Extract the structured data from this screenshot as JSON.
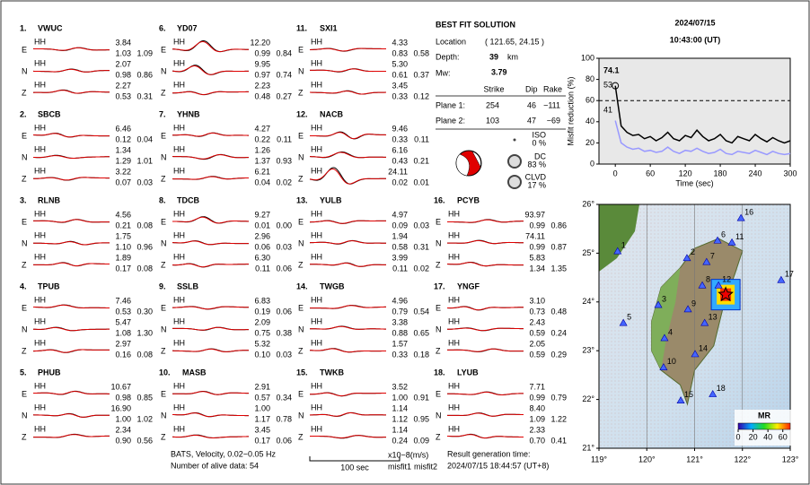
{
  "header": {
    "date": "2024/07/15",
    "time": "10:43:00  (UT)"
  },
  "stations": [
    {
      "number": "1.",
      "name": "VWUC",
      "channel": "HH",
      "components": [
        {
          "label": "E",
          "amplitude": "3.84",
          "misfit1": "1.03",
          "misfit2": "1.09"
        },
        {
          "label": "N",
          "amplitude": "2.07",
          "misfit1": "0.98",
          "misfit2": "0.86"
        },
        {
          "label": "Z",
          "amplitude": "2.27",
          "misfit1": "0.53",
          "misfit2": "0.31"
        }
      ]
    },
    {
      "number": "2.",
      "name": "SBCB",
      "channel": "HH",
      "components": [
        {
          "label": "E",
          "amplitude": "6.46",
          "misfit1": "0.12",
          "misfit2": "0.04"
        },
        {
          "label": "N",
          "amplitude": "1.34",
          "misfit1": "1.29",
          "misfit2": "1.01"
        },
        {
          "label": "Z",
          "amplitude": "3.22",
          "misfit1": "0.07",
          "misfit2": "0.03"
        }
      ]
    },
    {
      "number": "3.",
      "name": "RLNB",
      "channel": "HH",
      "components": [
        {
          "label": "E",
          "amplitude": "4.56",
          "misfit1": "0.21",
          "misfit2": "0.08"
        },
        {
          "label": "N",
          "amplitude": "1.75",
          "misfit1": "1.10",
          "misfit2": "0.96"
        },
        {
          "label": "Z",
          "amplitude": "1.89",
          "misfit1": "0.17",
          "misfit2": "0.08"
        }
      ]
    },
    {
      "number": "4.",
      "name": "TPUB",
      "channel": "HH",
      "components": [
        {
          "label": "E",
          "amplitude": "7.46",
          "misfit1": "0.53",
          "misfit2": "0.30"
        },
        {
          "label": "N",
          "amplitude": "5.47",
          "misfit1": "1.08",
          "misfit2": "1.30"
        },
        {
          "label": "Z",
          "amplitude": "2.97",
          "misfit1": "0.16",
          "misfit2": "0.08"
        }
      ]
    },
    {
      "number": "5.",
      "name": "PHUB",
      "channel": "HH",
      "components": [
        {
          "label": "E",
          "amplitude": "10.67",
          "misfit1": "0.98",
          "misfit2": "0.85"
        },
        {
          "label": "N",
          "amplitude": "16.90",
          "misfit1": "1.00",
          "misfit2": "1.02"
        },
        {
          "label": "Z",
          "amplitude": "2.34",
          "misfit1": "0.90",
          "misfit2": "0.56"
        }
      ]
    },
    {
      "number": "6.",
      "name": "YD07",
      "channel": "HH",
      "components": [
        {
          "label": "E",
          "amplitude": "12.20",
          "misfit1": "0.99",
          "misfit2": "0.84"
        },
        {
          "label": "N",
          "amplitude": "9.95",
          "misfit1": "0.97",
          "misfit2": "0.74"
        },
        {
          "label": "Z",
          "amplitude": "2.23",
          "misfit1": "0.48",
          "misfit2": "0.27"
        }
      ]
    },
    {
      "number": "7.",
      "name": "YHNB",
      "channel": "HH",
      "components": [
        {
          "label": "E",
          "amplitude": "4.27",
          "misfit1": "0.22",
          "misfit2": "0.11"
        },
        {
          "label": "N",
          "amplitude": "1.26",
          "misfit1": "1.37",
          "misfit2": "0.93"
        },
        {
          "label": "Z",
          "amplitude": "6.21",
          "misfit1": "0.04",
          "misfit2": "0.02"
        }
      ]
    },
    {
      "number": "8.",
      "name": "TDCB",
      "channel": "HH",
      "components": [
        {
          "label": "E",
          "amplitude": "9.27",
          "misfit1": "0.01",
          "misfit2": "0.00"
        },
        {
          "label": "N",
          "amplitude": "2.96",
          "misfit1": "0.06",
          "misfit2": "0.03"
        },
        {
          "label": "Z",
          "amplitude": "6.30",
          "misfit1": "0.11",
          "misfit2": "0.06"
        }
      ]
    },
    {
      "number": "9.",
      "name": "SSLB",
      "channel": "HH",
      "components": [
        {
          "label": "E",
          "amplitude": "6.83",
          "misfit1": "0.19",
          "misfit2": "0.06"
        },
        {
          "label": "N",
          "amplitude": "2.09",
          "misfit1": "0.75",
          "misfit2": "0.38"
        },
        {
          "label": "Z",
          "amplitude": "5.32",
          "misfit1": "0.10",
          "misfit2": "0.03"
        }
      ]
    },
    {
      "number": "10.",
      "name": "MASB",
      "channel": "HH",
      "components": [
        {
          "label": "E",
          "amplitude": "2.91",
          "misfit1": "0.57",
          "misfit2": "0.34"
        },
        {
          "label": "N",
          "amplitude": "1.00",
          "misfit1": "1.17",
          "misfit2": "0.78"
        },
        {
          "label": "Z",
          "amplitude": "3.45",
          "misfit1": "0.17",
          "misfit2": "0.06"
        }
      ]
    },
    {
      "number": "11.",
      "name": "SXI1",
      "channel": "HH",
      "components": [
        {
          "label": "E",
          "amplitude": "4.33",
          "misfit1": "0.83",
          "misfit2": "0.58"
        },
        {
          "label": "N",
          "amplitude": "5.30",
          "misfit1": "0.61",
          "misfit2": "0.37"
        },
        {
          "label": "Z",
          "amplitude": "3.45",
          "misfit1": "0.33",
          "misfit2": "0.12"
        }
      ]
    },
    {
      "number": "12.",
      "name": "NACB",
      "channel": "HH",
      "components": [
        {
          "label": "E",
          "amplitude": "9.46",
          "misfit1": "0.33",
          "misfit2": "0.11"
        },
        {
          "label": "N",
          "amplitude": "6.16",
          "misfit1": "0.43",
          "misfit2": "0.21"
        },
        {
          "label": "Z",
          "amplitude": "24.11",
          "misfit1": "0.02",
          "misfit2": "0.01"
        }
      ]
    },
    {
      "number": "13.",
      "name": "YULB",
      "channel": "HH",
      "components": [
        {
          "label": "E",
          "amplitude": "4.97",
          "misfit1": "0.09",
          "misfit2": "0.03"
        },
        {
          "label": "N",
          "amplitude": "1.94",
          "misfit1": "0.58",
          "misfit2": "0.31"
        },
        {
          "label": "Z",
          "amplitude": "3.99",
          "misfit1": "0.11",
          "misfit2": "0.02"
        }
      ]
    },
    {
      "number": "14.",
      "name": "TWGB",
      "channel": "HH",
      "components": [
        {
          "label": "E",
          "amplitude": "4.96",
          "misfit1": "0.79",
          "misfit2": "0.54"
        },
        {
          "label": "N",
          "amplitude": "3.38",
          "misfit1": "0.88",
          "misfit2": "0.65"
        },
        {
          "label": "Z",
          "amplitude": "1.57",
          "misfit1": "0.33",
          "misfit2": "0.18"
        }
      ]
    },
    {
      "number": "15.",
      "name": "TWKB",
      "channel": "HH",
      "components": [
        {
          "label": "E",
          "amplitude": "3.52",
          "misfit1": "1.00",
          "misfit2": "0.91"
        },
        {
          "label": "N",
          "amplitude": "1.14",
          "misfit1": "1.12",
          "misfit2": "0.95"
        },
        {
          "label": "Z",
          "amplitude": "1.14",
          "misfit1": "0.24",
          "misfit2": "0.09"
        }
      ]
    },
    {
      "number": "16.",
      "name": "PCYB",
      "channel": "HH",
      "components": [
        {
          "label": "E",
          "amplitude": "93.97",
          "misfit1": "0.99",
          "misfit2": "0.86"
        },
        {
          "label": "N",
          "amplitude": "74.11",
          "misfit1": "0.99",
          "misfit2": "0.87"
        },
        {
          "label": "Z",
          "amplitude": "5.83",
          "misfit1": "1.34",
          "misfit2": "1.35"
        }
      ]
    },
    {
      "number": "17.",
      "name": "YNGF",
      "channel": "HH",
      "components": [
        {
          "label": "E",
          "amplitude": "3.10",
          "misfit1": "0.73",
          "misfit2": "0.48"
        },
        {
          "label": "N",
          "amplitude": "2.43",
          "misfit1": "0.59",
          "misfit2": "0.24"
        },
        {
          "label": "Z",
          "amplitude": "2.05",
          "misfit1": "0.59",
          "misfit2": "0.29"
        }
      ]
    },
    {
      "number": "18.",
      "name": "LYUB",
      "channel": "HH",
      "components": [
        {
          "label": "E",
          "amplitude": "7.71",
          "misfit1": "0.99",
          "misfit2": "0.79"
        },
        {
          "label": "N",
          "amplitude": "8.40",
          "misfit1": "1.09",
          "misfit2": "1.22"
        },
        {
          "label": "Z",
          "amplitude": "2.33",
          "misfit1": "0.70",
          "misfit2": "0.41"
        }
      ]
    }
  ],
  "solution": {
    "title": "BEST FIT SOLUTION",
    "location_label": "Location",
    "location": "( 121.65, 24.15 )",
    "depth_label": "Depth:",
    "depth": "39",
    "depth_unit": "km",
    "mw_label": "Mw:",
    "mw": "3.79",
    "columns": [
      "Strike",
      "Dip",
      "Rake"
    ],
    "planes": [
      {
        "label": "Plane 1:",
        "values": [
          "254",
          "46",
          "−111"
        ]
      },
      {
        "label": "Plane 2:",
        "values": [
          "103",
          "47",
          "−69"
        ]
      }
    ],
    "components": [
      {
        "label": "ISO",
        "percent": "0 %"
      },
      {
        "label": "DC",
        "percent": "83 %"
      },
      {
        "label": "CLVD",
        "percent": "17 %"
      }
    ]
  },
  "misfit_chart": {
    "y_label": "Misfit reduction (%)",
    "x_label": "Time (sec)",
    "xlim": [
      -28,
      300
    ],
    "ylim": [
      0,
      100
    ],
    "xticks": [
      0,
      60,
      120,
      180,
      240,
      300
    ],
    "yticks": [
      0,
      20,
      40,
      60,
      80,
      100
    ],
    "reference_line": 60,
    "annotations": [
      {
        "text": "74.1",
        "color": "#e00000"
      },
      {
        "text": "53",
        "color": "#999999"
      },
      {
        "text": "41",
        "color": "#8888ff"
      }
    ],
    "x": [
      0,
      10,
      20,
      30,
      40,
      50,
      60,
      70,
      80,
      90,
      100,
      110,
      120,
      130,
      140,
      150,
      160,
      170,
      180,
      190,
      200,
      210,
      220,
      230,
      240,
      250,
      260,
      270,
      280,
      290,
      300
    ],
    "series": [
      {
        "color": "#000000",
        "values": [
          74,
          36,
          30,
          27,
          28,
          24,
          26,
          22,
          25,
          30,
          24,
          22,
          27,
          25,
          32,
          26,
          22,
          24,
          28,
          22,
          20,
          26,
          24,
          22,
          28,
          24,
          21,
          25,
          22,
          20,
          22
        ]
      },
      {
        "color": "#9999ff",
        "values": [
          41,
          20,
          16,
          14,
          15,
          12,
          13,
          11,
          12,
          16,
          12,
          10,
          13,
          12,
          15,
          12,
          10,
          11,
          14,
          10,
          9,
          12,
          11,
          10,
          13,
          11,
          9,
          12,
          10,
          9,
          10
        ]
      }
    ]
  },
  "map": {
    "xlim": [
      119,
      123
    ],
    "ylim": [
      21,
      26
    ],
    "lon_ticks": [
      {
        "value": 119,
        "label": "119°"
      },
      {
        "value": 120,
        "label": "120°"
      },
      {
        "value": 121,
        "label": "121°"
      },
      {
        "value": 122,
        "label": "122°"
      },
      {
        "value": 123,
        "label": "123°"
      }
    ],
    "lat_ticks": [
      {
        "value": 21,
        "label": "21°"
      },
      {
        "value": 22,
        "label": "22°"
      },
      {
        "value": 23,
        "label": "23°"
      },
      {
        "value": 24,
        "label": "24°"
      },
      {
        "value": 25,
        "label": "25°"
      },
      {
        "value": 26,
        "label": "26°"
      }
    ],
    "epicenter": {
      "lon": 121.65,
      "lat": 24.15
    },
    "stations": [
      {
        "label": "1",
        "lon": 119.39,
        "lat": 25.04
      },
      {
        "label": "2",
        "lon": 120.84,
        "lat": 24.9
      },
      {
        "label": "3",
        "lon": 120.24,
        "lat": 23.94
      },
      {
        "label": "4",
        "lon": 120.37,
        "lat": 23.26
      },
      {
        "label": "5",
        "lon": 119.51,
        "lat": 23.57
      },
      {
        "label": "6",
        "lon": 121.48,
        "lat": 25.26
      },
      {
        "label": "7",
        "lon": 121.25,
        "lat": 24.82
      },
      {
        "label": "8",
        "lon": 121.16,
        "lat": 24.34
      },
      {
        "label": "9",
        "lon": 120.86,
        "lat": 23.85
      },
      {
        "label": "10",
        "lon": 120.35,
        "lat": 22.66
      },
      {
        "label": "11",
        "lon": 121.78,
        "lat": 25.22
      },
      {
        "label": "12",
        "lon": 121.5,
        "lat": 24.34
      },
      {
        "label": "13",
        "lon": 121.21,
        "lat": 23.57
      },
      {
        "label": "14",
        "lon": 121.01,
        "lat": 22.93
      },
      {
        "label": "15",
        "lon": 120.71,
        "lat": 21.98
      },
      {
        "label": "16",
        "lon": 121.97,
        "lat": 25.72
      },
      {
        "label": "17",
        "lon": 122.81,
        "lat": 24.45
      },
      {
        "label": "18",
        "lon": 121.38,
        "lat": 22.11
      }
    ],
    "colorbar": {
      "title": "MR",
      "lim": [
        0,
        70
      ],
      "ticks": [
        0,
        20,
        40,
        60
      ]
    }
  },
  "footer": {
    "source": "BATS, Velocity, 0.02−0.05 Hz",
    "alive": "Number of alive data: 54",
    "scale": "100 sec",
    "unit": "x10−8(m/s)",
    "misfit1": "misfit1",
    "misfit2": "misfit2",
    "result_label": "Result generation time:",
    "result_time": "2024/07/15 18:44:57 (UT+8)"
  }
}
